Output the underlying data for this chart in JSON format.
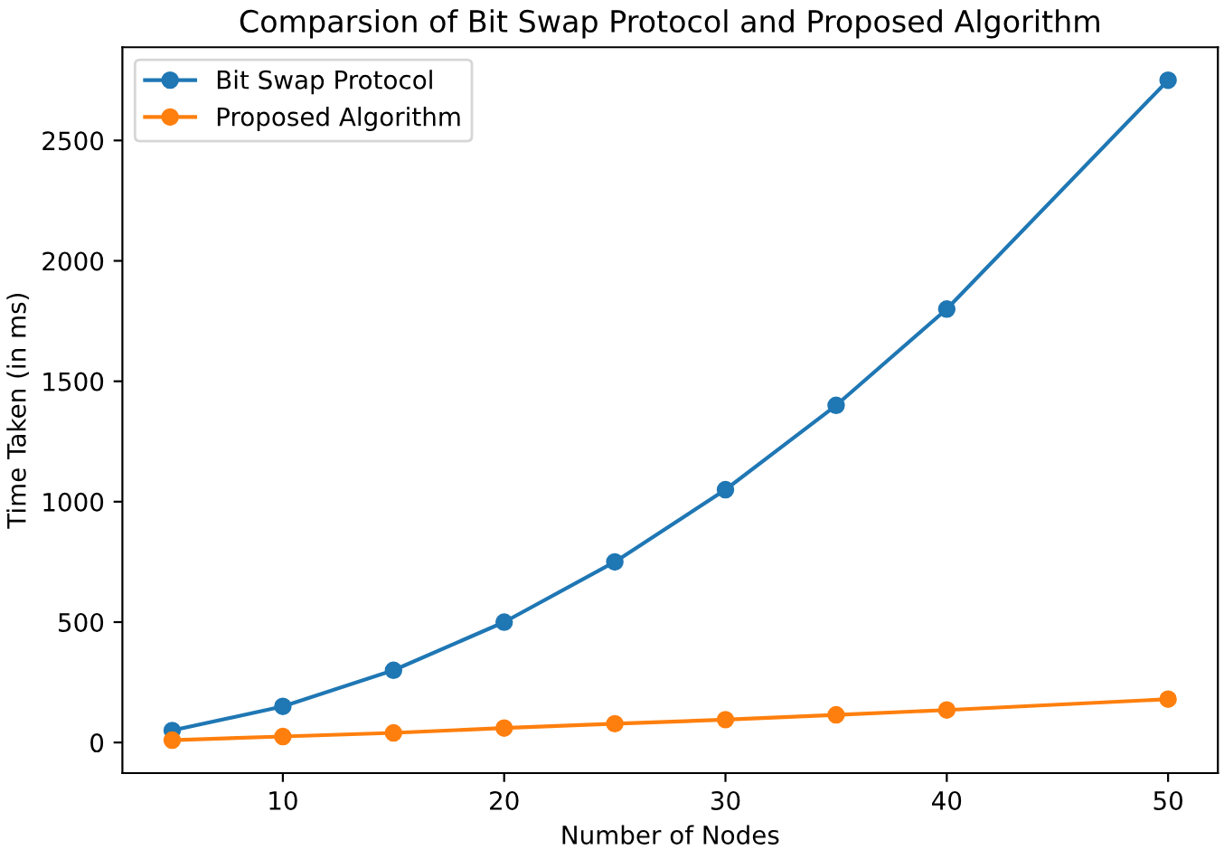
{
  "chart_data": {
    "type": "line",
    "title": "Comparsion of Bit Swap Protocol and Proposed Algorithm",
    "xlabel": "Number of Nodes",
    "ylabel": "Time Taken (in ms)",
    "x": [
      5,
      10,
      15,
      20,
      25,
      30,
      35,
      40,
      50
    ],
    "series": [
      {
        "name": "Bit Swap Protocol",
        "color": "#1f77b4",
        "values": [
          50,
          150,
          300,
          500,
          750,
          1050,
          1400,
          1800,
          2750
        ]
      },
      {
        "name": "Proposed Algorithm",
        "color": "#ff7f0e",
        "values": [
          10,
          25,
          40,
          60,
          78,
          95,
          115,
          135,
          180
        ]
      }
    ],
    "xlim": [
      2.75,
      52.25
    ],
    "ylim": [
      -127,
      2887
    ],
    "xticks": [
      10,
      20,
      30,
      40,
      50
    ],
    "yticks": [
      0,
      500,
      1000,
      1500,
      2000,
      2500
    ],
    "marker": "circle",
    "line_style": "solid",
    "legend": "top left",
    "grid": false
  }
}
